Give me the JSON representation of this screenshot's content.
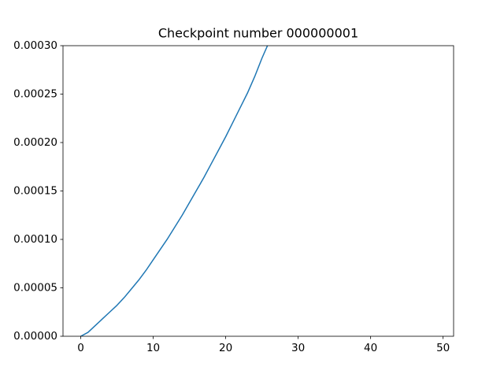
{
  "chart_data": {
    "type": "line",
    "title": "Checkpoint number 000000001",
    "x": [
      0,
      1,
      2,
      3,
      4,
      5,
      6,
      7,
      8,
      9,
      10,
      11,
      12,
      13,
      14,
      15,
      16,
      17,
      18,
      19,
      20,
      21,
      22,
      23,
      24,
      25,
      26
    ],
    "series": [
      {
        "color": "#1f77b4",
        "values": [
          0,
          4e-06,
          1.1e-05,
          1.8e-05,
          2.5e-05,
          3.2e-05,
          4e-05,
          4.9e-05,
          5.8e-05,
          6.8e-05,
          7.9e-05,
          9e-05,
          0.000101,
          0.000113,
          0.000125,
          0.000138,
          0.000151,
          0.000164,
          0.000178,
          0.000192,
          0.000206,
          0.000221,
          0.000236,
          0.000251,
          0.000268,
          0.000287,
          0.000304
        ]
      }
    ],
    "xlim": [
      -2.45,
      51.45
    ],
    "xticks": [
      0,
      10,
      20,
      30,
      40,
      50
    ],
    "ylim": [
      0,
      0.0003
    ],
    "yticks": [
      {
        "value": 0,
        "label": "0.00000"
      },
      {
        "value": 5e-05,
        "label": "0.00005"
      },
      {
        "value": 0.0001,
        "label": "0.00010"
      },
      {
        "value": 0.00015,
        "label": "0.00015"
      },
      {
        "value": 0.0002,
        "label": "0.00020"
      },
      {
        "value": 0.00025,
        "label": "0.00025"
      },
      {
        "value": 0.0003,
        "label": "0.00030"
      }
    ]
  }
}
